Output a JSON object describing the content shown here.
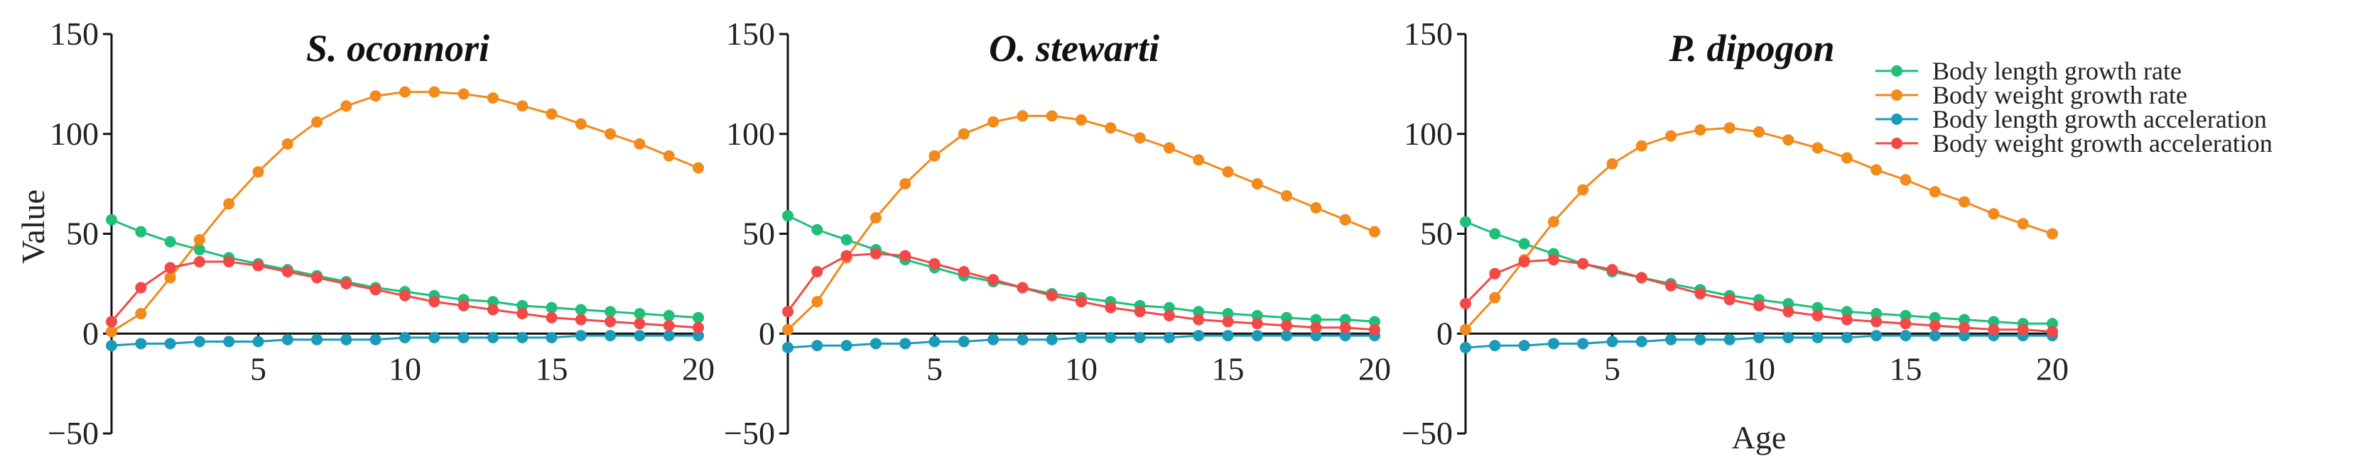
{
  "chart_data": [
    {
      "type": "line",
      "title": "S. oconnori",
      "ylabel": "Value",
      "xlabel": "",
      "xlim": [
        0,
        20
      ],
      "ylim": [
        -50,
        150
      ],
      "xticks": [
        5,
        10,
        15,
        20
      ],
      "yticks": [
        -50,
        0,
        50,
        100,
        150
      ],
      "x": [
        0,
        1,
        2,
        3,
        4,
        5,
        6,
        7,
        8,
        9,
        10,
        11,
        12,
        13,
        14,
        15,
        16,
        17,
        18,
        19,
        20
      ],
      "series": [
        {
          "name": "Body length growth rate",
          "color": "#1fbf7a",
          "values": [
            57,
            51,
            46,
            42,
            38,
            35,
            32,
            29,
            26,
            23,
            21,
            19,
            17,
            16,
            14,
            13,
            12,
            11,
            10,
            9,
            8
          ]
        },
        {
          "name": "Body weight growth rate",
          "color": "#f28a1c",
          "values": [
            1,
            10,
            28,
            47,
            65,
            81,
            95,
            106,
            114,
            119,
            121,
            121,
            120,
            118,
            114,
            110,
            105,
            100,
            95,
            89,
            83
          ]
        },
        {
          "name": "Body length growth acceleration",
          "color": "#1b9bb8",
          "values": [
            -6,
            -5,
            -5,
            -4,
            -4,
            -4,
            -3,
            -3,
            -3,
            -3,
            -2,
            -2,
            -2,
            -2,
            -2,
            -2,
            -1,
            -1,
            -1,
            -1,
            -1
          ]
        },
        {
          "name": "Body weight growth acceleration",
          "color": "#f24848",
          "values": [
            6,
            23,
            33,
            36,
            36,
            34,
            31,
            28,
            25,
            22,
            19,
            16,
            14,
            12,
            10,
            8,
            7,
            6,
            5,
            4,
            3
          ]
        }
      ]
    },
    {
      "type": "line",
      "title": "O. stewarti",
      "ylabel": "",
      "xlabel": "",
      "xlim": [
        0,
        20
      ],
      "ylim": [
        -50,
        150
      ],
      "xticks": [
        5,
        10,
        15,
        20
      ],
      "yticks": [
        -50,
        0,
        50,
        100,
        150
      ],
      "x": [
        0,
        1,
        2,
        3,
        4,
        5,
        6,
        7,
        8,
        9,
        10,
        11,
        12,
        13,
        14,
        15,
        16,
        17,
        18,
        19,
        20
      ],
      "series": [
        {
          "name": "Body length growth rate",
          "color": "#1fbf7a",
          "values": [
            59,
            52,
            47,
            42,
            37,
            33,
            29,
            26,
            23,
            20,
            18,
            16,
            14,
            13,
            11,
            10,
            9,
            8,
            7,
            7,
            6
          ]
        },
        {
          "name": "Body weight growth rate",
          "color": "#f28a1c",
          "values": [
            2,
            16,
            38,
            58,
            75,
            89,
            100,
            106,
            109,
            109,
            107,
            103,
            98,
            93,
            87,
            81,
            75,
            69,
            63,
            57,
            51
          ]
        },
        {
          "name": "Body length growth acceleration",
          "color": "#1b9bb8",
          "values": [
            -7,
            -6,
            -6,
            -5,
            -5,
            -4,
            -4,
            -3,
            -3,
            -3,
            -2,
            -2,
            -2,
            -2,
            -1,
            -1,
            -1,
            -1,
            -1,
            -1,
            -1
          ]
        },
        {
          "name": "Body weight growth acceleration",
          "color": "#f24848",
          "values": [
            11,
            31,
            39,
            40,
            39,
            35,
            31,
            27,
            23,
            19,
            16,
            13,
            11,
            9,
            7,
            6,
            5,
            4,
            3,
            3,
            2
          ]
        }
      ]
    },
    {
      "type": "line",
      "title": "P. dipogon",
      "ylabel": "",
      "xlabel": "Age",
      "xlim": [
        0,
        20
      ],
      "ylim": [
        -50,
        150
      ],
      "xticks": [
        5,
        10,
        15,
        20
      ],
      "yticks": [
        -50,
        0,
        50,
        100,
        150
      ],
      "x": [
        0,
        1,
        2,
        3,
        4,
        5,
        6,
        7,
        8,
        9,
        10,
        11,
        12,
        13,
        14,
        15,
        16,
        17,
        18,
        19,
        20
      ],
      "series": [
        {
          "name": "Body length growth rate",
          "color": "#1fbf7a",
          "values": [
            56,
            50,
            45,
            40,
            35,
            31,
            28,
            25,
            22,
            19,
            17,
            15,
            13,
            11,
            10,
            9,
            8,
            7,
            6,
            5,
            5
          ]
        },
        {
          "name": "Body weight growth rate",
          "color": "#f28a1c",
          "values": [
            2,
            18,
            37,
            56,
            72,
            85,
            94,
            99,
            102,
            103,
            101,
            97,
            93,
            88,
            82,
            77,
            71,
            66,
            60,
            55,
            50
          ]
        },
        {
          "name": "Body length growth acceleration",
          "color": "#1b9bb8",
          "values": [
            -7,
            -6,
            -6,
            -5,
            -5,
            -4,
            -4,
            -3,
            -3,
            -3,
            -2,
            -2,
            -2,
            -2,
            -1,
            -1,
            -1,
            -1,
            -1,
            -1,
            -1
          ]
        },
        {
          "name": "Body weight growth acceleration",
          "color": "#f24848",
          "values": [
            15,
            30,
            36,
            37,
            35,
            32,
            28,
            24,
            20,
            17,
            14,
            11,
            9,
            7,
            6,
            5,
            4,
            3,
            2,
            2,
            1
          ]
        }
      ]
    }
  ],
  "legend": {
    "placement": "top-right",
    "items": [
      {
        "label": "Body length growth rate",
        "color": "#1fbf7a"
      },
      {
        "label": "Body weight growth rate",
        "color": "#f28a1c"
      },
      {
        "label": "Body length growth acceleration",
        "color": "#1b9bb8"
      },
      {
        "label": "Body weight growth acceleration",
        "color": "#f24848"
      }
    ]
  }
}
